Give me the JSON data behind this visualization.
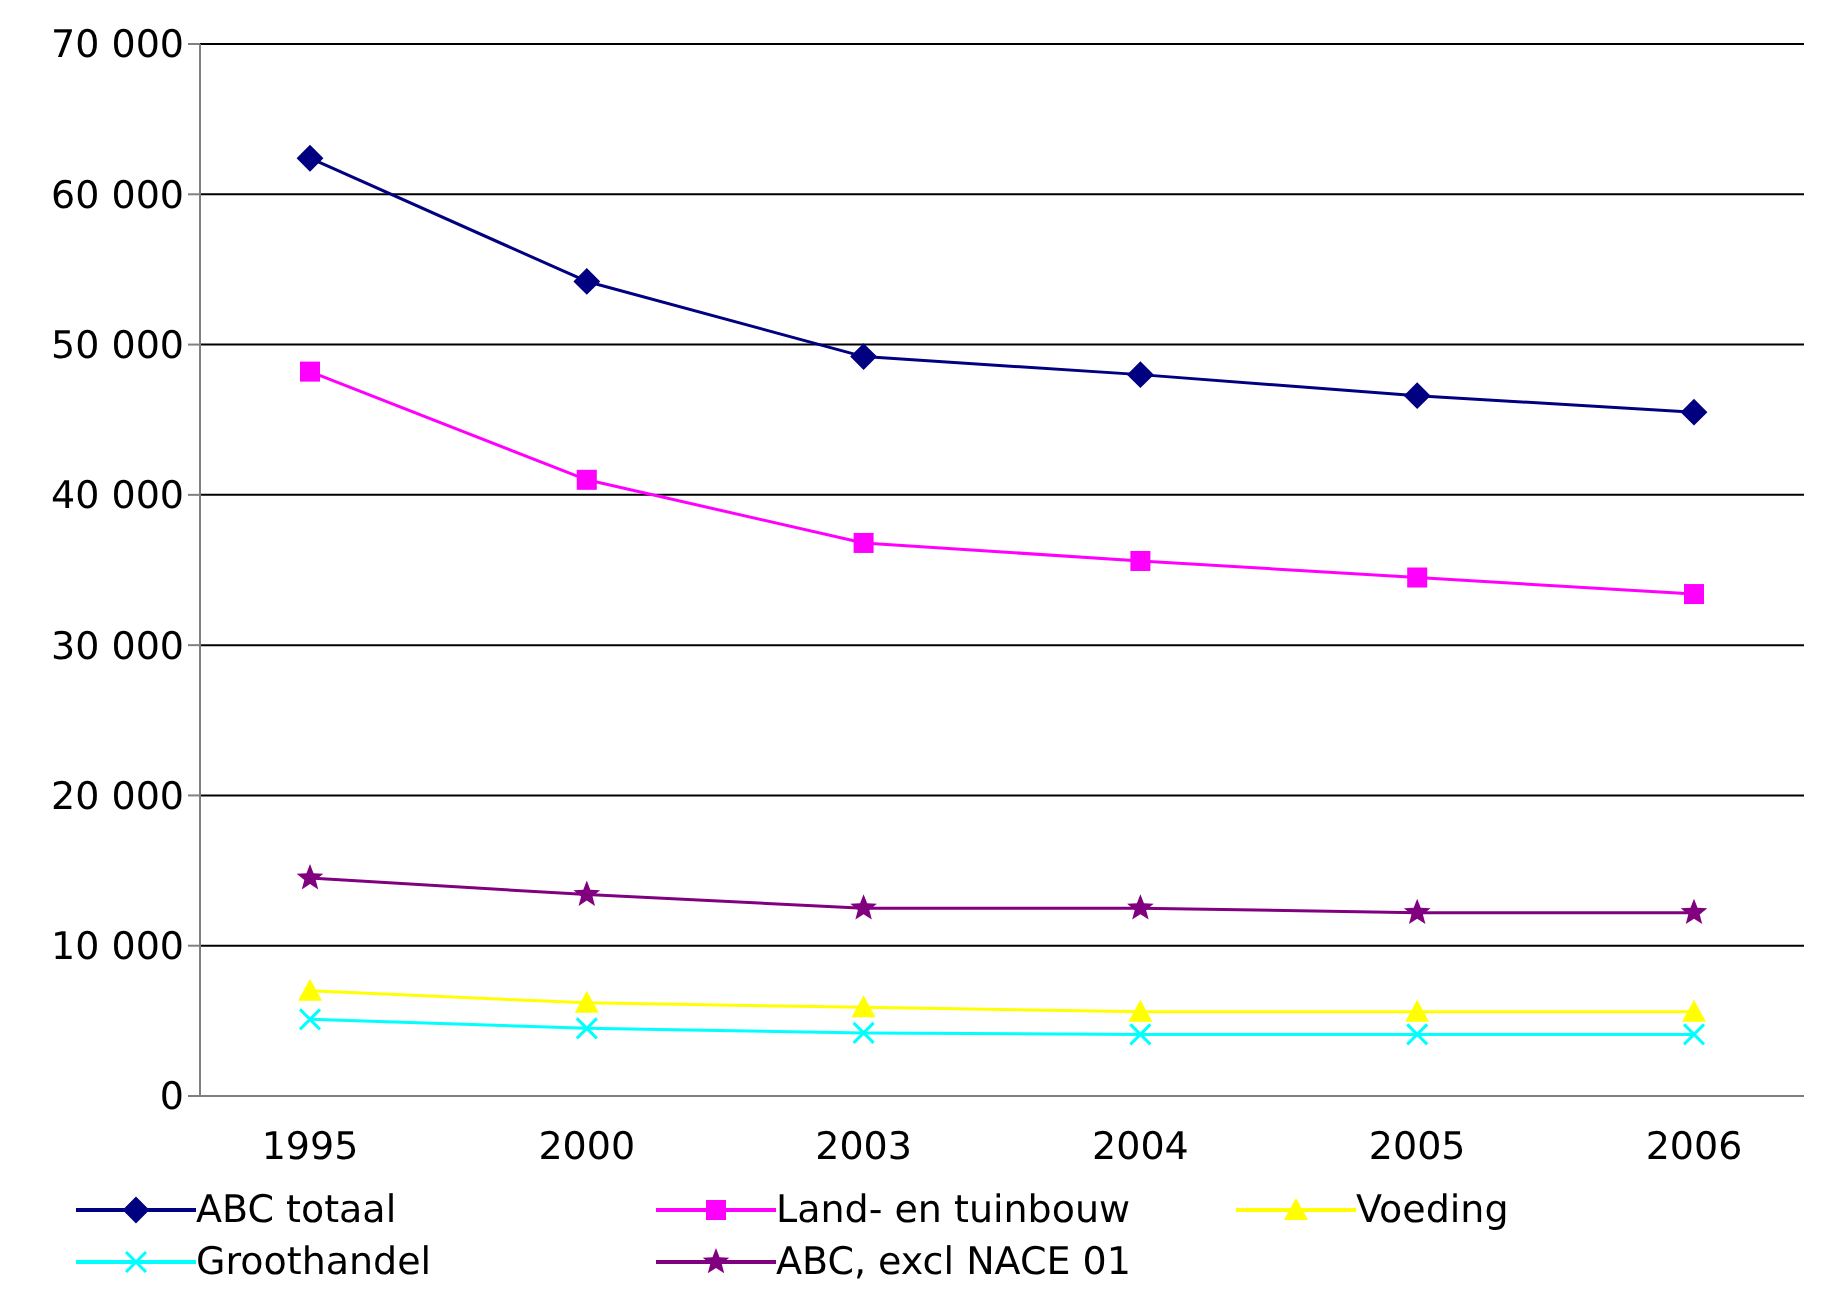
{
  "chart_data": {
    "type": "line",
    "categories": [
      "1995",
      "2000",
      "2003",
      "2004",
      "2005",
      "2006"
    ],
    "series": [
      {
        "name": "ABC totaal",
        "color": "#000080",
        "marker": "diamond",
        "values": [
          62400,
          54200,
          49200,
          48000,
          46600,
          45500
        ]
      },
      {
        "name": "Land- en tuinbouw",
        "color": "#ff00ff",
        "marker": "square",
        "values": [
          48200,
          41000,
          36800,
          35600,
          34500,
          33400
        ]
      },
      {
        "name": "Voeding",
        "color": "#ffff00",
        "marker": "triangle",
        "values": [
          7000,
          6200,
          5900,
          5600,
          5600,
          5600
        ]
      },
      {
        "name": "Groothandel",
        "color": "#00ffff",
        "marker": "cross",
        "values": [
          5100,
          4500,
          4200,
          4100,
          4100,
          4100
        ]
      },
      {
        "name": "ABC, excl NACE 01",
        "color": "#800080",
        "marker": "star",
        "values": [
          14500,
          13400,
          12500,
          12500,
          12200,
          12200
        ]
      }
    ],
    "ylim": [
      0,
      70000
    ],
    "yticks": [
      {
        "value": 0,
        "label": "0"
      },
      {
        "value": 10000,
        "label": "10 000"
      },
      {
        "value": 20000,
        "label": "20 000"
      },
      {
        "value": 30000,
        "label": "30 000"
      },
      {
        "value": 40000,
        "label": "40 000"
      },
      {
        "value": 50000,
        "label": "50 000"
      },
      {
        "value": 60000,
        "label": "60 000"
      },
      {
        "value": 70000,
        "label": "70 000"
      }
    ],
    "grid": "y",
    "legend": "bottom",
    "line_style": "solid"
  }
}
